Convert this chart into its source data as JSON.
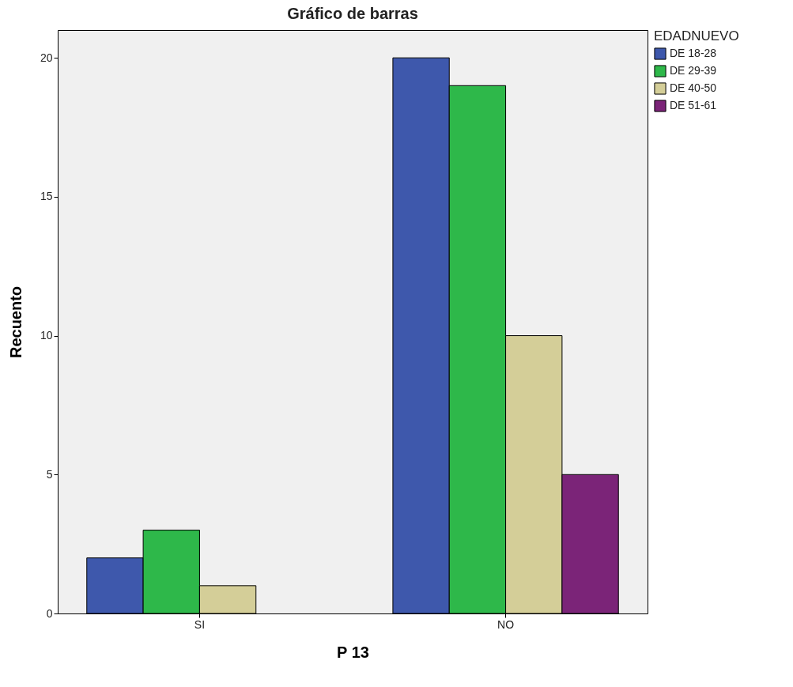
{
  "chart_data": {
    "type": "bar",
    "title": "Gráfico de barras",
    "xlabel": "P 13",
    "ylabel": "Recuento",
    "legend_title": "EDADNUEVO",
    "categories": [
      "SI",
      "NO"
    ],
    "series": [
      {
        "name": "DE 18-28",
        "color": "#3e58ac",
        "values": [
          2,
          20
        ]
      },
      {
        "name": "DE 29-39",
        "color": "#2eb84a",
        "values": [
          3,
          19
        ]
      },
      {
        "name": "DE 40-50",
        "color": "#d4ce98",
        "values": [
          1,
          10
        ]
      },
      {
        "name": "DE 51-61",
        "color": "#7b2478",
        "values": [
          null,
          5
        ]
      }
    ],
    "ylim": [
      0,
      21
    ],
    "yticks": [
      0,
      5,
      10,
      15,
      20
    ],
    "grid": false,
    "legend": "top right"
  }
}
